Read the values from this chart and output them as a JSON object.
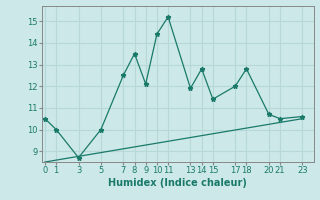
{
  "xlabel": "Humidex (Indice chaleur)",
  "ylabel": "",
  "bg_color": "#cce8e8",
  "grid_color": "#b8d8d8",
  "line_color": "#1a7a6a",
  "spine_color": "#888888",
  "line1_x": [
    0,
    1,
    3,
    5,
    7,
    8,
    9,
    10,
    11,
    13,
    14,
    15,
    17,
    18,
    20,
    21,
    23
  ],
  "line1_y": [
    10.5,
    10.0,
    8.7,
    10.0,
    12.5,
    13.5,
    12.1,
    14.4,
    15.2,
    11.9,
    12.8,
    11.4,
    12.0,
    12.8,
    10.7,
    10.5,
    10.6
  ],
  "line2_x": [
    0,
    23
  ],
  "line2_y": [
    8.5,
    10.5
  ],
  "ylim": [
    8.5,
    15.7
  ],
  "xlim": [
    -0.3,
    24.0
  ],
  "xticks": [
    0,
    1,
    3,
    5,
    7,
    8,
    9,
    10,
    11,
    13,
    14,
    15,
    17,
    18,
    20,
    21,
    23
  ],
  "yticks": [
    9,
    10,
    11,
    12,
    13,
    14,
    15
  ],
  "tick_fontsize": 6.0,
  "xlabel_fontsize": 7.0
}
